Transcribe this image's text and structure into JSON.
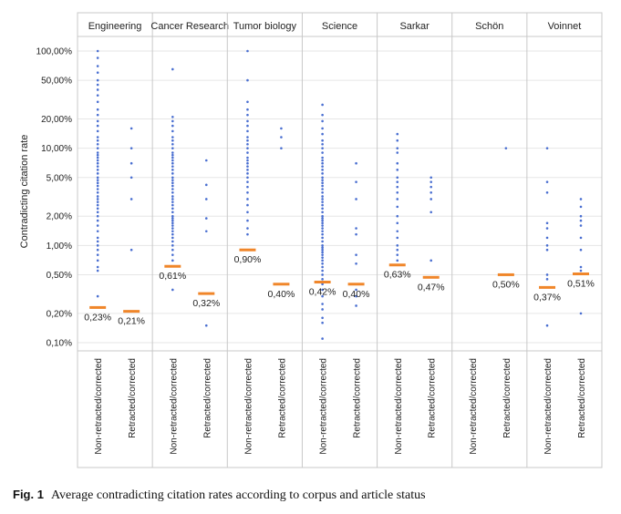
{
  "caption": {
    "label": "Fig. 1",
    "text": "Average contradicting citation rates according to corpus and article status"
  },
  "chart_data": {
    "type": "scatter",
    "ylabel": "Contradicting citation rate",
    "y_scale": "log",
    "ylim": [
      0.0008,
      1.3
    ],
    "yticks": [
      {
        "value": 1.0,
        "label": "100,00%"
      },
      {
        "value": 0.5,
        "label": "50,00%"
      },
      {
        "value": 0.2,
        "label": "20,00%"
      },
      {
        "value": 0.1,
        "label": "10,00%"
      },
      {
        "value": 0.05,
        "label": "5,00%"
      },
      {
        "value": 0.02,
        "label": "2,00%"
      },
      {
        "value": 0.01,
        "label": "1,00%"
      },
      {
        "value": 0.005,
        "label": "0,50%"
      },
      {
        "value": 0.002,
        "label": "0,20%"
      },
      {
        "value": 0.001,
        "label": "0,10%"
      }
    ],
    "grid": true,
    "colors": {
      "points": "#4a6fd1",
      "mean": "#f0862a"
    },
    "panels": [
      {
        "name": "Engineering",
        "groups": [
          {
            "label": "Non-retracted/corrected",
            "mean": 0.0023,
            "mean_label": "0,23%",
            "points": [
              1.0,
              0.85,
              0.7,
              0.6,
              0.5,
              0.45,
              0.4,
              0.35,
              0.3,
              0.25,
              0.22,
              0.19,
              0.17,
              0.15,
              0.13,
              0.12,
              0.11,
              0.1,
              0.09,
              0.085,
              0.08,
              0.075,
              0.07,
              0.065,
              0.06,
              0.055,
              0.05,
              0.047,
              0.044,
              0.041,
              0.038,
              0.035,
              0.032,
              0.03,
              0.028,
              0.026,
              0.024,
              0.022,
              0.02,
              0.018,
              0.016,
              0.014,
              0.012,
              0.011,
              0.01,
              0.009,
              0.008,
              0.007,
              0.006,
              0.0055,
              0.003
            ]
          },
          {
            "label": "Retracted/corrected",
            "mean": 0.0021,
            "mean_label": "0,21%",
            "points": [
              0.16,
              0.1,
              0.07,
              0.05,
              0.03,
              0.009
            ]
          }
        ]
      },
      {
        "name": "Cancer Research",
        "groups": [
          {
            "label": "Non-retracted/corrected",
            "mean": 0.0061,
            "mean_label": "0,61%",
            "points": [
              0.65,
              0.21,
              0.19,
              0.17,
              0.15,
              0.13,
              0.12,
              0.11,
              0.1,
              0.09,
              0.085,
              0.08,
              0.075,
              0.07,
              0.065,
              0.06,
              0.055,
              0.05,
              0.047,
              0.044,
              0.041,
              0.038,
              0.035,
              0.032,
              0.03,
              0.028,
              0.026,
              0.024,
              0.022,
              0.02,
              0.019,
              0.018,
              0.017,
              0.016,
              0.015,
              0.014,
              0.013,
              0.012,
              0.011,
              0.01,
              0.009,
              0.008,
              0.007,
              0.0035
            ]
          },
          {
            "label": "Retracted/corrected",
            "mean": 0.0032,
            "mean_label": "0,32%",
            "points": [
              0.075,
              0.042,
              0.03,
              0.019,
              0.014,
              0.0015
            ]
          }
        ]
      },
      {
        "name": "Tumor biology",
        "groups": [
          {
            "label": "Non-retracted/corrected",
            "mean": 0.009,
            "mean_label": "0,90%",
            "points": [
              1.0,
              0.5,
              0.3,
              0.25,
              0.22,
              0.19,
              0.17,
              0.15,
              0.13,
              0.12,
              0.11,
              0.1,
              0.09,
              0.08,
              0.075,
              0.07,
              0.065,
              0.06,
              0.055,
              0.05,
              0.045,
              0.04,
              0.035,
              0.03,
              0.026,
              0.022,
              0.018,
              0.015,
              0.013
            ]
          },
          {
            "label": "Retracted/corrected",
            "mean": 0.004,
            "mean_label": "0,40%",
            "points": [
              0.16,
              0.13,
              0.1
            ]
          }
        ]
      },
      {
        "name": "Science",
        "groups": [
          {
            "label": "Non-retracted/corrected",
            "mean": 0.0042,
            "mean_label": "0,42%",
            "points": [
              0.28,
              0.22,
              0.19,
              0.16,
              0.14,
              0.12,
              0.11,
              0.1,
              0.09,
              0.08,
              0.075,
              0.07,
              0.065,
              0.06,
              0.055,
              0.05,
              0.047,
              0.044,
              0.041,
              0.038,
              0.035,
              0.032,
              0.03,
              0.028,
              0.026,
              0.024,
              0.022,
              0.02,
              0.019,
              0.018,
              0.017,
              0.016,
              0.015,
              0.014,
              0.013,
              0.012,
              0.011,
              0.01,
              0.0095,
              0.009,
              0.0085,
              0.008,
              0.0075,
              0.007,
              0.0065,
              0.006,
              0.0055,
              0.005,
              0.0045,
              0.004,
              0.0035,
              0.003,
              0.0025,
              0.0022,
              0.0018,
              0.0016,
              0.0011
            ]
          },
          {
            "label": "Retracted/corrected",
            "mean": 0.004,
            "mean_label": "0,40%",
            "points": [
              0.07,
              0.045,
              0.03,
              0.015,
              0.013,
              0.008,
              0.0065,
              0.0035,
              0.003,
              0.0024
            ]
          }
        ]
      },
      {
        "name": "Sarkar",
        "groups": [
          {
            "label": "Non-retracted/corrected",
            "mean": 0.0063,
            "mean_label": "0,63%",
            "points": [
              0.14,
              0.12,
              0.1,
              0.09,
              0.07,
              0.06,
              0.05,
              0.045,
              0.04,
              0.035,
              0.03,
              0.025,
              0.02,
              0.017,
              0.014,
              0.012,
              0.01,
              0.009,
              0.008,
              0.007
            ]
          },
          {
            "label": "Retracted/corrected",
            "mean": 0.0047,
            "mean_label": "0,47%",
            "points": [
              0.05,
              0.045,
              0.04,
              0.035,
              0.03,
              0.022,
              0.007
            ]
          }
        ]
      },
      {
        "name": "Schön",
        "groups": [
          {
            "label": "Non-retracted/corrected",
            "mean": null,
            "mean_label": "",
            "points": []
          },
          {
            "label": "Retracted/corrected",
            "mean": 0.005,
            "mean_label": "0,50%",
            "points": [
              0.1
            ]
          }
        ]
      },
      {
        "name": "Voinnet",
        "groups": [
          {
            "label": "Non-retracted/corrected",
            "mean": 0.0037,
            "mean_label": "0,37%",
            "points": [
              0.1,
              0.045,
              0.035,
              0.017,
              0.015,
              0.012,
              0.01,
              0.009,
              0.005,
              0.0045,
              0.0015
            ]
          },
          {
            "label": "Retracted/corrected",
            "mean": 0.0051,
            "mean_label": "0,51%",
            "points": [
              0.03,
              0.025,
              0.02,
              0.018,
              0.016,
              0.012,
              0.009,
              0.006,
              0.0055,
              0.002
            ]
          }
        ]
      }
    ]
  }
}
